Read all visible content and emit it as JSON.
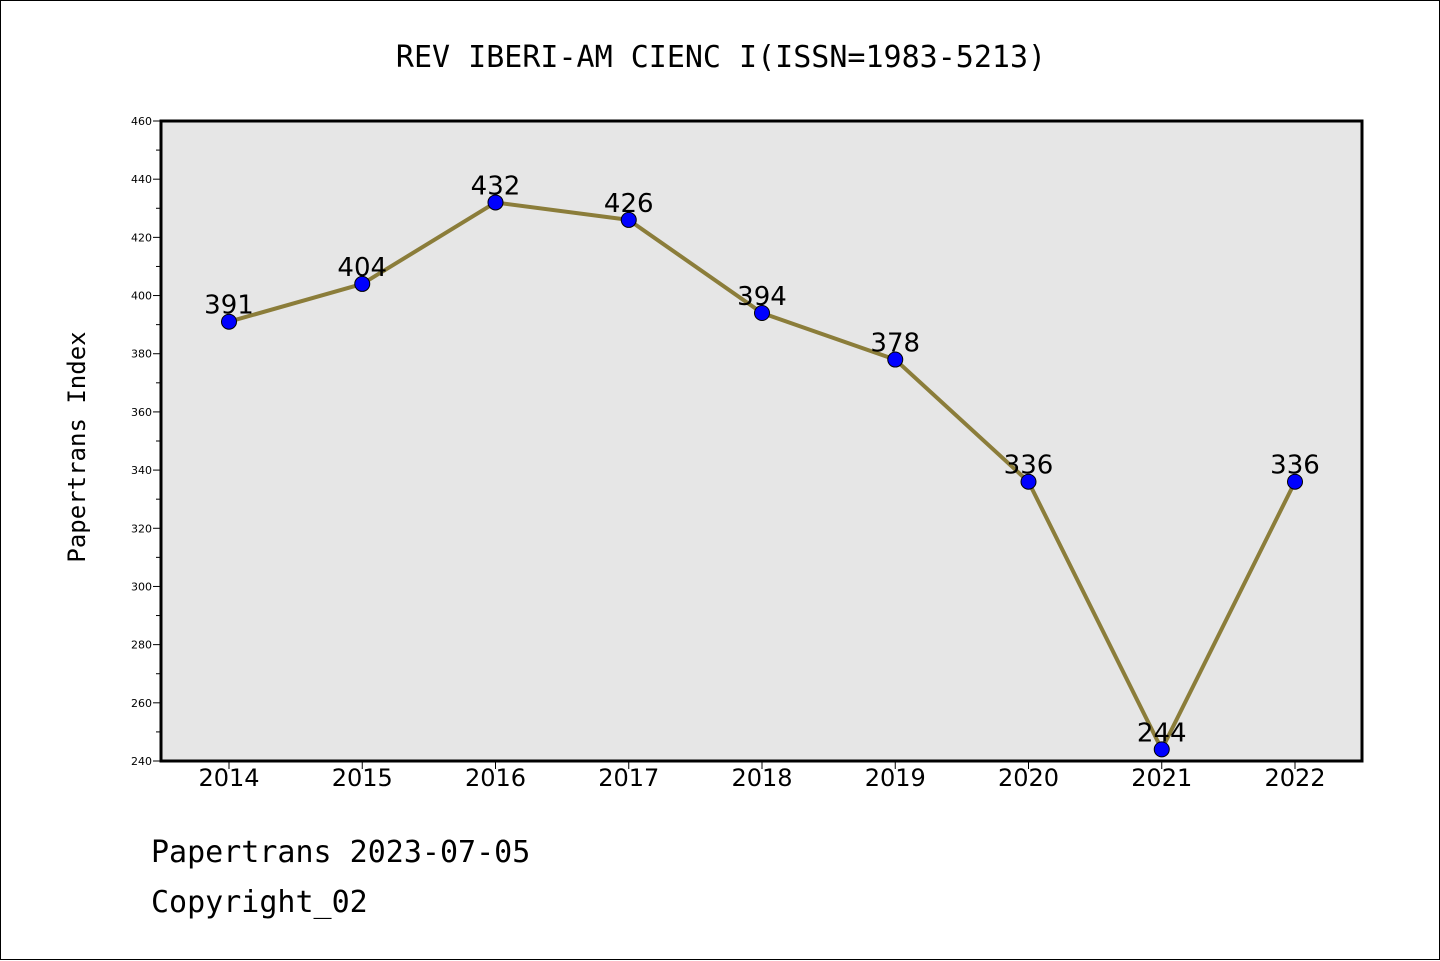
{
  "footer": {
    "line1": "Papertrans 2023-07-05",
    "line2": "Copyright_02"
  },
  "colors": {
    "plot_background": "#e6e6e6",
    "line": "#8b7d3a",
    "marker": "#0000ff"
  },
  "chart_data": {
    "type": "line",
    "title": "REV IBERI-AM CIENC I(ISSN=1983-5213)",
    "xlabel": "",
    "ylabel": "Papertrans Index",
    "categories": [
      "2014",
      "2015",
      "2016",
      "2017",
      "2018",
      "2019",
      "2020",
      "2021",
      "2022"
    ],
    "values": [
      391,
      404,
      432,
      426,
      394,
      378,
      336,
      244,
      336
    ],
    "ylim": [
      240,
      460
    ],
    "yticks": [
      240,
      260,
      280,
      300,
      320,
      340,
      360,
      380,
      400,
      420,
      440,
      460
    ],
    "grid": false,
    "data_labels": true
  }
}
